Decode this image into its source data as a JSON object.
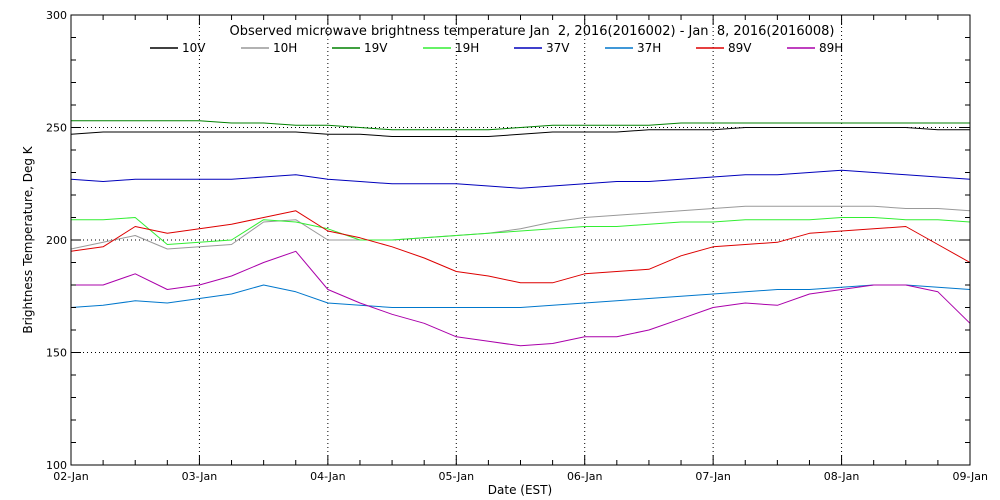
{
  "chart_data": {
    "type": "line",
    "title": "Observed microwave brightness temperature Jan  2, 2016(2016002) - Jan  8, 2016(2016008)",
    "xlabel": "Date (EST)",
    "ylabel": "Brightness Temperature, Deg K",
    "ylim": [
      100,
      300
    ],
    "yticks": [
      100,
      150,
      200,
      250,
      300
    ],
    "xlim": [
      "2016-01-02",
      "2016-01-09"
    ],
    "xticks": [
      {
        "date": "2016-01-02",
        "label": "02-Jan"
      },
      {
        "date": "2016-01-03",
        "label": "03-Jan"
      },
      {
        "date": "2016-01-04",
        "label": "04-Jan"
      },
      {
        "date": "2016-01-05",
        "label": "05-Jan"
      },
      {
        "date": "2016-01-06",
        "label": "06-Jan"
      },
      {
        "date": "2016-01-07",
        "label": "07-Jan"
      },
      {
        "date": "2016-01-08",
        "label": "08-Jan"
      },
      {
        "date": "2016-01-09",
        "label": "09-Jan"
      }
    ],
    "grid": true,
    "legend_position": "top",
    "x": [
      "2016-01-02 00:00",
      "2016-01-02 06:00",
      "2016-01-02 12:00",
      "2016-01-02 18:00",
      "2016-01-03 00:00",
      "2016-01-03 06:00",
      "2016-01-03 12:00",
      "2016-01-03 18:00",
      "2016-01-04 00:00",
      "2016-01-04 06:00",
      "2016-01-04 12:00",
      "2016-01-04 18:00",
      "2016-01-05 00:00",
      "2016-01-05 06:00",
      "2016-01-05 12:00",
      "2016-01-05 18:00",
      "2016-01-06 00:00",
      "2016-01-06 06:00",
      "2016-01-06 12:00",
      "2016-01-06 18:00",
      "2016-01-07 00:00",
      "2016-01-07 06:00",
      "2016-01-07 12:00",
      "2016-01-07 18:00",
      "2016-01-08 00:00",
      "2016-01-08 06:00",
      "2016-01-08 12:00",
      "2016-01-08 18:00",
      "2016-01-09 00:00"
    ],
    "series": [
      {
        "name": "10V",
        "color": "#000000",
        "values": [
          247,
          248,
          248,
          248,
          248,
          248,
          248,
          248,
          247,
          247,
          246,
          246,
          246,
          246,
          247,
          248,
          248,
          248,
          249,
          249,
          249,
          250,
          250,
          250,
          250,
          250,
          250,
          249,
          249
        ]
      },
      {
        "name": "10H",
        "color": "#999999",
        "values": [
          196,
          199,
          202,
          196,
          197,
          198,
          208,
          209,
          200,
          200,
          200,
          201,
          202,
          203,
          205,
          208,
          210,
          211,
          212,
          213,
          214,
          215,
          215,
          215,
          215,
          215,
          214,
          214,
          213
        ]
      },
      {
        "name": "19V",
        "color": "#008000",
        "values": [
          253,
          253,
          253,
          253,
          253,
          252,
          252,
          251,
          251,
          250,
          249,
          249,
          249,
          249,
          250,
          251,
          251,
          251,
          251,
          252,
          252,
          252,
          252,
          252,
          252,
          252,
          252,
          252,
          252
        ]
      },
      {
        "name": "19H",
        "color": "#33ee33",
        "values": [
          209,
          209,
          210,
          198,
          199,
          200,
          209,
          208,
          205,
          200,
          200,
          201,
          202,
          203,
          204,
          205,
          206,
          206,
          207,
          208,
          208,
          209,
          209,
          209,
          210,
          210,
          209,
          209,
          208
        ]
      },
      {
        "name": "37V",
        "color": "#0000bb",
        "values": [
          227,
          226,
          227,
          227,
          227,
          227,
          228,
          229,
          227,
          226,
          225,
          225,
          225,
          224,
          223,
          224,
          225,
          226,
          226,
          227,
          228,
          229,
          229,
          230,
          231,
          230,
          229,
          228,
          227
        ]
      },
      {
        "name": "37H",
        "color": "#0077cc",
        "values": [
          170,
          171,
          173,
          172,
          174,
          176,
          180,
          177,
          172,
          171,
          170,
          170,
          170,
          170,
          170,
          171,
          172,
          173,
          174,
          175,
          176,
          177,
          178,
          178,
          179,
          180,
          180,
          179,
          178
        ]
      },
      {
        "name": "89V",
        "color": "#dd0000",
        "values": [
          195,
          197,
          206,
          203,
          205,
          207,
          210,
          213,
          204,
          201,
          197,
          192,
          186,
          184,
          181,
          181,
          185,
          186,
          187,
          193,
          197,
          198,
          199,
          203,
          204,
          205,
          206,
          198,
          190
        ]
      },
      {
        "name": "89H",
        "color": "#aa00aa",
        "values": [
          180,
          180,
          185,
          178,
          180,
          184,
          190,
          195,
          178,
          172,
          167,
          163,
          157,
          155,
          153,
          154,
          157,
          157,
          160,
          165,
          170,
          172,
          171,
          176,
          178,
          180,
          180,
          177,
          163
        ]
      }
    ]
  }
}
